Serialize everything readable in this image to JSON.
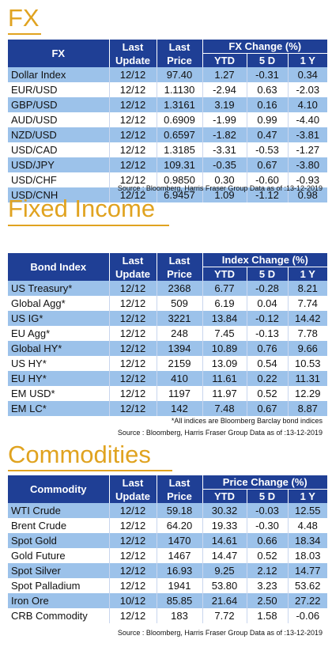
{
  "fx": {
    "title": "FX",
    "headers": {
      "name": "FX",
      "last_update": "Last Update",
      "last_price": "Last Price",
      "group": "FX Change (%)",
      "ytd": "YTD",
      "d5": "5 D",
      "y1": "1 Y"
    },
    "rows": [
      {
        "name": "Dollar Index",
        "update": "12/12",
        "price": "97.40",
        "ytd": "1.27",
        "d5": "-0.31",
        "y1": "0.34"
      },
      {
        "name": "EUR/USD",
        "update": "12/12",
        "price": "1.1130",
        "ytd": "-2.94",
        "d5": "0.63",
        "y1": "-2.03"
      },
      {
        "name": "GBP/USD",
        "update": "12/12",
        "price": "1.3161",
        "ytd": "3.19",
        "d5": "0.16",
        "y1": "4.10"
      },
      {
        "name": "AUD/USD",
        "update": "12/12",
        "price": "0.6909",
        "ytd": "-1.99",
        "d5": "0.99",
        "y1": "-4.40"
      },
      {
        "name": "NZD/USD",
        "update": "12/12",
        "price": "0.6597",
        "ytd": "-1.82",
        "d5": "0.47",
        "y1": "-3.81"
      },
      {
        "name": "USD/CAD",
        "update": "12/12",
        "price": "1.3185",
        "ytd": "-3.31",
        "d5": "-0.53",
        "y1": "-1.27"
      },
      {
        "name": "USD/JPY",
        "update": "12/12",
        "price": "109.31",
        "ytd": "-0.35",
        "d5": "0.67",
        "y1": "-3.80"
      },
      {
        "name": "USD/CHF",
        "update": "12/12",
        "price": "0.9850",
        "ytd": "0.30",
        "d5": "-0.60",
        "y1": "-0.93"
      },
      {
        "name": "USD/CNH",
        "update": "12/12",
        "price": "6.9457",
        "ytd": "1.09",
        "d5": "-1.12",
        "y1": "0.98"
      }
    ],
    "source": "Source : Bloomberg, Harris Fraser Group Data as of :13-12-2019"
  },
  "fixed_income": {
    "title": "Fixed Income",
    "headers": {
      "name": "Bond Index",
      "last_update": "Last Update",
      "last_price": "Last Price",
      "group": "Index Change (%)",
      "ytd": "YTD",
      "d5": "5 D",
      "y1": "1 Y"
    },
    "rows": [
      {
        "name": "US Treasury*",
        "update": "12/12",
        "price": "2368",
        "ytd": "6.77",
        "d5": "-0.28",
        "y1": "8.21"
      },
      {
        "name": "Global Agg*",
        "update": "12/12",
        "price": "509",
        "ytd": "6.19",
        "d5": "0.04",
        "y1": "7.74"
      },
      {
        "name": "US IG*",
        "update": "12/12",
        "price": "3221",
        "ytd": "13.84",
        "d5": "-0.12",
        "y1": "14.42"
      },
      {
        "name": "EU Agg*",
        "update": "12/12",
        "price": "248",
        "ytd": "7.45",
        "d5": "-0.13",
        "y1": "7.78"
      },
      {
        "name": "Global HY*",
        "update": "12/12",
        "price": "1394",
        "ytd": "10.89",
        "d5": "0.76",
        "y1": "9.66"
      },
      {
        "name": "US HY*",
        "update": "12/12",
        "price": "2159",
        "ytd": "13.09",
        "d5": "0.54",
        "y1": "10.53"
      },
      {
        "name": "EU HY*",
        "update": "12/12",
        "price": "410",
        "ytd": "11.61",
        "d5": "0.22",
        "y1": "11.31"
      },
      {
        "name": "EM USD*",
        "update": "12/12",
        "price": "1197",
        "ytd": "11.97",
        "d5": "0.52",
        "y1": "12.29"
      },
      {
        "name": "EM LC*",
        "update": "12/12",
        "price": "142",
        "ytd": "7.48",
        "d5": "0.67",
        "y1": "8.87"
      }
    ],
    "note": "*All indices are Bloomberg Barclay bond indices",
    "source": "Source : Bloomberg, Harris Fraser Group Data as of :13-12-2019"
  },
  "commodities": {
    "title": "Commodities",
    "headers": {
      "name": "Commodity",
      "last_update": "Last Update",
      "last_price": "Last Price",
      "group": "Price Change (%)",
      "ytd": "YTD",
      "d5": "5 D",
      "y1": "1 Y"
    },
    "rows": [
      {
        "name": "WTI Crude",
        "update": "12/12",
        "price": "59.18",
        "ytd": "30.32",
        "d5": "-0.03",
        "y1": "12.55"
      },
      {
        "name": "Brent Crude",
        "update": "12/12",
        "price": "64.20",
        "ytd": "19.33",
        "d5": "-0.30",
        "y1": "4.48"
      },
      {
        "name": "Spot Gold",
        "update": "12/12",
        "price": "1470",
        "ytd": "14.61",
        "d5": "0.66",
        "y1": "18.34"
      },
      {
        "name": "Gold Future",
        "update": "12/12",
        "price": "1467",
        "ytd": "14.47",
        "d5": "0.52",
        "y1": "18.03"
      },
      {
        "name": "Spot Silver",
        "update": "12/12",
        "price": "16.93",
        "ytd": "9.25",
        "d5": "2.12",
        "y1": "14.77"
      },
      {
        "name": "Spot Palladium",
        "update": "12/12",
        "price": "1941",
        "ytd": "53.80",
        "d5": "3.23",
        "y1": "53.62"
      },
      {
        "name": "Iron Ore",
        "update": "10/12",
        "price": "85.85",
        "ytd": "21.64",
        "d5": "2.50",
        "y1": "27.22"
      },
      {
        "name": "CRB Commodity",
        "update": "12/12",
        "price": "183",
        "ytd": "7.72",
        "d5": "1.58",
        "y1": "-0.06"
      }
    ],
    "source": "Source : Bloomberg, Harris Fraser Group Data as of :13-12-2019"
  },
  "colors": {
    "title_gold": "#e0a320",
    "header_navy": "#1f3f95",
    "row_alt_blue": "#9cc2ea"
  }
}
